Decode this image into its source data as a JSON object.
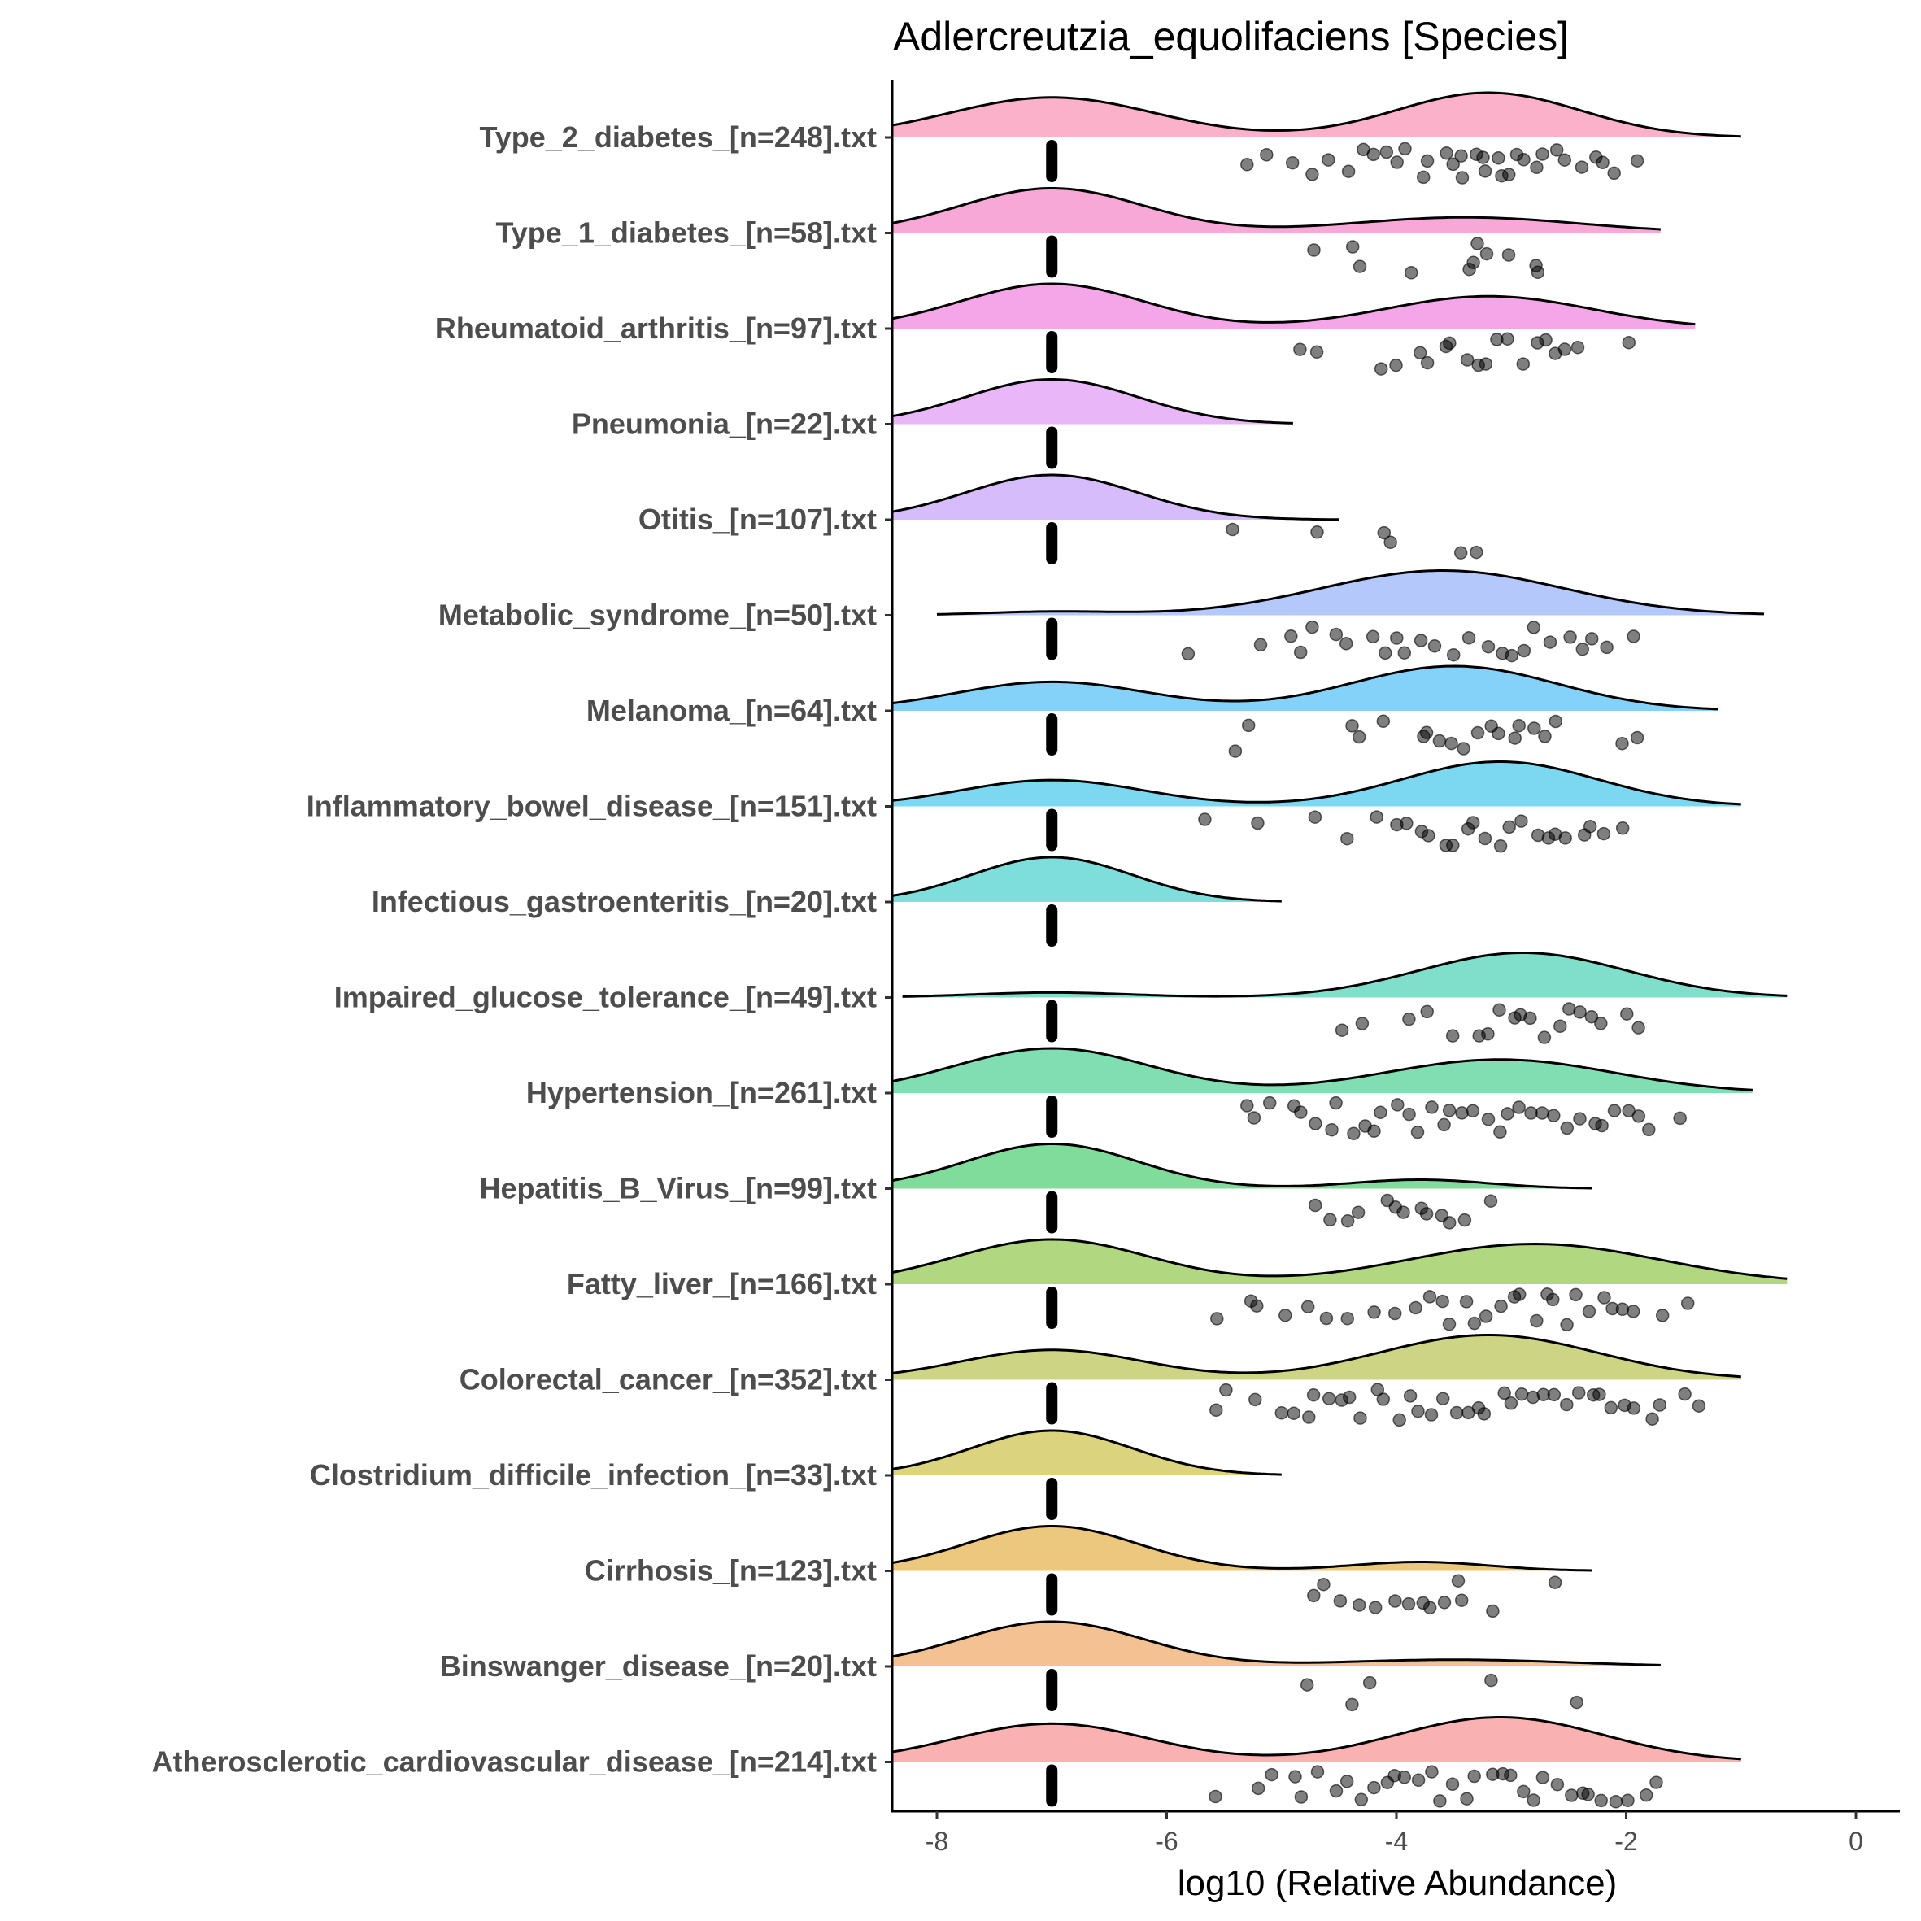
{
  "chart_data": {
    "type": "raincloud",
    "title": "Adlercreutzia_equolifaciens [Species]",
    "xlabel": "log10 (Relative Abundance)",
    "ylabel": "",
    "xlim": [
      -8.4,
      0.4
    ],
    "xticks": [
      -8,
      -6,
      -4,
      -2,
      0
    ],
    "xtick_labels": [
      "-8",
      "-6",
      "-4",
      "-2",
      "0"
    ],
    "zero_value": -7,
    "series": [
      {
        "label": "Type_2_diabetes_[n=248].txt",
        "color": "#FBB1C9",
        "range": [
          -8.4,
          -1.0
        ],
        "modes": [
          [
            -7,
            0.85,
            0.9
          ],
          [
            -3.2,
            0.95,
            0.8
          ]
        ],
        "points": [
          -5.3,
          -5.1,
          -4.9,
          -4.7,
          -4.6,
          -4.4,
          -4.3,
          -4.2,
          -4.1,
          -4.0,
          -3.9,
          -3.8,
          -3.7,
          -3.6,
          -3.5,
          -3.45,
          -3.4,
          -3.3,
          -3.25,
          -3.2,
          -3.1,
          -3.05,
          -3.0,
          -2.95,
          -2.9,
          -2.8,
          -2.7,
          -2.6,
          -2.5,
          -2.4,
          -2.3,
          -2.2,
          -2.1,
          -1.9
        ]
      },
      {
        "label": "Type_1_diabetes_[n=58].txt",
        "color": "#F8A8D6",
        "range": [
          -8.4,
          -1.7
        ],
        "modes": [
          [
            -7,
            1.0,
            0.8
          ],
          [
            -3.4,
            0.35,
            1.0
          ]
        ],
        "points": [
          -4.7,
          -4.4,
          -4.3,
          -3.9,
          -3.4,
          -3.35,
          -3.3,
          -3.2,
          -3.0,
          -2.8,
          -2.75
        ]
      },
      {
        "label": "Rheumatoid_arthritis_[n=97].txt",
        "color": "#F5A6E8",
        "range": [
          -8.4,
          -1.4
        ],
        "modes": [
          [
            -7,
            0.9,
            0.8
          ],
          [
            -3.2,
            0.65,
            0.9
          ]
        ],
        "points": [
          -4.8,
          -4.7,
          -4.1,
          -4.0,
          -3.8,
          -3.7,
          -3.6,
          -3.5,
          -3.4,
          -3.3,
          -3.2,
          -3.1,
          -3.0,
          -2.9,
          -2.8,
          -2.7,
          -2.6,
          -2.5,
          -2.4,
          -2.0
        ]
      },
      {
        "label": "Pneumonia_[n=22].txt",
        "color": "#E9B6F8",
        "range": [
          -8.4,
          -4.9
        ],
        "modes": [
          [
            -7,
            1.0,
            0.75
          ]
        ],
        "points": []
      },
      {
        "label": "Otitis_[n=107].txt",
        "color": "#D6BCFA",
        "range": [
          -8.4,
          -4.5
        ],
        "modes": [
          [
            -7,
            1.0,
            0.75
          ]
        ],
        "points": [
          -5.4,
          -4.7,
          -4.1,
          -4.05,
          -3.4,
          -3.3
        ]
      },
      {
        "label": "Metabolic_syndrome_[n=50].txt",
        "color": "#B4C8FC",
        "range": [
          -8.0,
          -0.8
        ],
        "modes": [
          [
            -7,
            0.08,
            0.6
          ],
          [
            -3.6,
            1.0,
            1.05
          ]
        ],
        "points": [
          -5.8,
          -5.2,
          -4.9,
          -4.8,
          -4.7,
          -4.5,
          -4.4,
          -4.2,
          -4.1,
          -4.0,
          -3.9,
          -3.8,
          -3.7,
          -3.5,
          -3.4,
          -3.2,
          -3.1,
          -3.0,
          -2.9,
          -2.8,
          -2.7,
          -2.5,
          -2.4,
          -2.3,
          -2.2,
          -1.9
        ]
      },
      {
        "label": "Melanoma_[n=64].txt",
        "color": "#84D1FA",
        "range": [
          -8.4,
          -1.2
        ],
        "modes": [
          [
            -7,
            0.55,
            0.85
          ],
          [
            -3.5,
            0.85,
            0.9
          ]
        ],
        "points": [
          -5.4,
          -5.3,
          -4.4,
          -4.3,
          -4.1,
          -3.8,
          -3.7,
          -3.6,
          -3.5,
          -3.4,
          -3.3,
          -3.2,
          -3.1,
          -3.0,
          -2.9,
          -2.8,
          -2.7,
          -2.6,
          -2.0,
          -1.9
        ]
      },
      {
        "label": "Inflammatory_bowel_disease_[n=151].txt",
        "color": "#7CD8F0",
        "range": [
          -8.4,
          -1.0
        ],
        "modes": [
          [
            -7,
            0.5,
            0.8
          ],
          [
            -3.1,
            0.85,
            0.85
          ]
        ],
        "points": [
          -5.7,
          -5.2,
          -4.7,
          -4.4,
          -4.2,
          -4.0,
          -3.9,
          -3.8,
          -3.7,
          -3.6,
          -3.5,
          -3.4,
          -3.3,
          -3.2,
          -3.1,
          -3.0,
          -2.9,
          -2.8,
          -2.7,
          -2.6,
          -2.5,
          -2.4,
          -2.3,
          -2.2,
          -2.0
        ]
      },
      {
        "label": "Infectious_gastroenteritis_[n=20].txt",
        "color": "#7EDEDB",
        "range": [
          -8.4,
          -5.0
        ],
        "modes": [
          [
            -7,
            1.0,
            0.7
          ]
        ],
        "points": []
      },
      {
        "label": "Impaired_glucose_tolerance_[n=49].txt",
        "color": "#80DFCA",
        "range": [
          -8.3,
          -0.6
        ],
        "modes": [
          [
            -7,
            0.1,
            0.7
          ],
          [
            -2.9,
            0.9,
            0.9
          ]
        ],
        "points": [
          -4.5,
          -4.3,
          -3.9,
          -3.7,
          -3.5,
          -3.3,
          -3.2,
          -3.1,
          -3.0,
          -2.9,
          -2.8,
          -2.7,
          -2.6,
          -2.5,
          -2.4,
          -2.3,
          -2.2,
          -2.0,
          -1.9
        ]
      },
      {
        "label": "Hypertension_[n=261].txt",
        "color": "#80DEB2",
        "range": [
          -8.4,
          -0.9
        ],
        "modes": [
          [
            -7,
            0.6,
            0.85
          ],
          [
            -3.1,
            0.45,
            1.0
          ]
        ],
        "points": [
          -5.3,
          -5.2,
          -5.1,
          -4.9,
          -4.8,
          -4.7,
          -4.6,
          -4.5,
          -4.4,
          -4.3,
          -4.2,
          -4.1,
          -4.0,
          -3.9,
          -3.8,
          -3.7,
          -3.6,
          -3.5,
          -3.4,
          -3.3,
          -3.2,
          -3.1,
          -3.0,
          -2.9,
          -2.8,
          -2.7,
          -2.6,
          -2.5,
          -2.4,
          -2.3,
          -2.2,
          -2.1,
          -2.0,
          -1.9,
          -1.8,
          -1.5
        ]
      },
      {
        "label": "Hepatitis_B_Virus_[n=99].txt",
        "color": "#80DC9A",
        "range": [
          -8.4,
          -2.3
        ],
        "modes": [
          [
            -7,
            1.0,
            0.75
          ],
          [
            -3.8,
            0.2,
            0.6
          ]
        ],
        "points": [
          -4.7,
          -4.6,
          -4.4,
          -4.3,
          -4.1,
          -4.0,
          -3.9,
          -3.8,
          -3.7,
          -3.6,
          -3.5,
          -3.4,
          -3.2
        ]
      },
      {
        "label": "Fatty_liver_[n=166].txt",
        "color": "#B1D880",
        "range": [
          -8.4,
          -0.6
        ],
        "modes": [
          [
            -7,
            0.5,
            0.85
          ],
          [
            -2.8,
            0.45,
            1.1
          ]
        ],
        "points": [
          -5.6,
          -5.3,
          -5.2,
          -5.0,
          -4.8,
          -4.6,
          -4.4,
          -4.2,
          -4.0,
          -3.8,
          -3.7,
          -3.6,
          -3.5,
          -3.4,
          -3.3,
          -3.2,
          -3.1,
          -3.0,
          -2.9,
          -2.8,
          -2.7,
          -2.6,
          -2.5,
          -2.4,
          -2.3,
          -2.2,
          -2.1,
          -2.0,
          -1.9,
          -1.7,
          -1.5
        ]
      },
      {
        "label": "Colorectal_cancer_[n=352].txt",
        "color": "#CDD484",
        "range": [
          -8.4,
          -1.0
        ],
        "modes": [
          [
            -7,
            0.4,
            0.8
          ],
          [
            -3.2,
            0.6,
            0.95
          ]
        ],
        "points": [
          -5.6,
          -5.5,
          -5.2,
          -5.0,
          -4.9,
          -4.8,
          -4.7,
          -4.6,
          -4.5,
          -4.4,
          -4.3,
          -4.2,
          -4.1,
          -4.0,
          -3.9,
          -3.8,
          -3.7,
          -3.6,
          -3.5,
          -3.4,
          -3.3,
          -3.2,
          -3.1,
          -3.0,
          -2.9,
          -2.8,
          -2.7,
          -2.6,
          -2.5,
          -2.4,
          -2.3,
          -2.2,
          -2.1,
          -2.0,
          -1.9,
          -1.8,
          -1.7,
          -1.5,
          -1.4
        ]
      },
      {
        "label": "Clostridium_difficile_infection_[n=33].txt",
        "color": "#DBD37E",
        "range": [
          -8.4,
          -5.0
        ],
        "modes": [
          [
            -7,
            1.0,
            0.7
          ]
        ],
        "points": []
      },
      {
        "label": "Cirrhosis_[n=123].txt",
        "color": "#ECC87E",
        "range": [
          -8.4,
          -2.3
        ],
        "modes": [
          [
            -7,
            1.0,
            0.75
          ],
          [
            -3.8,
            0.2,
            0.6
          ]
        ],
        "points": [
          -4.7,
          -4.6,
          -4.5,
          -4.3,
          -4.2,
          -4.0,
          -3.9,
          -3.8,
          -3.7,
          -3.6,
          -3.5,
          -3.4,
          -3.2,
          -2.6
        ]
      },
      {
        "label": "Binswanger_disease_[n=20].txt",
        "color": "#F4C193",
        "range": [
          -8.4,
          -1.7
        ],
        "modes": [
          [
            -7,
            1.0,
            0.8
          ],
          [
            -3.5,
            0.15,
            1.0
          ]
        ],
        "points": [
          -4.8,
          -4.4,
          -4.2,
          -3.2,
          -2.4
        ]
      },
      {
        "label": "Atherosclerotic_cardiovascular_disease_[n=214].txt",
        "color": "#F9B1B1",
        "range": [
          -8.4,
          -1.0
        ],
        "modes": [
          [
            -7,
            0.6,
            0.85
          ],
          [
            -3.1,
            0.7,
            0.9
          ]
        ],
        "points": [
          -5.6,
          -5.2,
          -5.1,
          -4.9,
          -4.8,
          -4.7,
          -4.5,
          -4.4,
          -4.3,
          -4.2,
          -4.1,
          -4.0,
          -3.9,
          -3.8,
          -3.7,
          -3.6,
          -3.5,
          -3.4,
          -3.3,
          -3.2,
          -3.1,
          -3.0,
          -2.9,
          -2.8,
          -2.7,
          -2.6,
          -2.5,
          -2.4,
          -2.3,
          -2.2,
          -2.1,
          -2.0,
          -1.8,
          -1.7
        ]
      }
    ]
  }
}
